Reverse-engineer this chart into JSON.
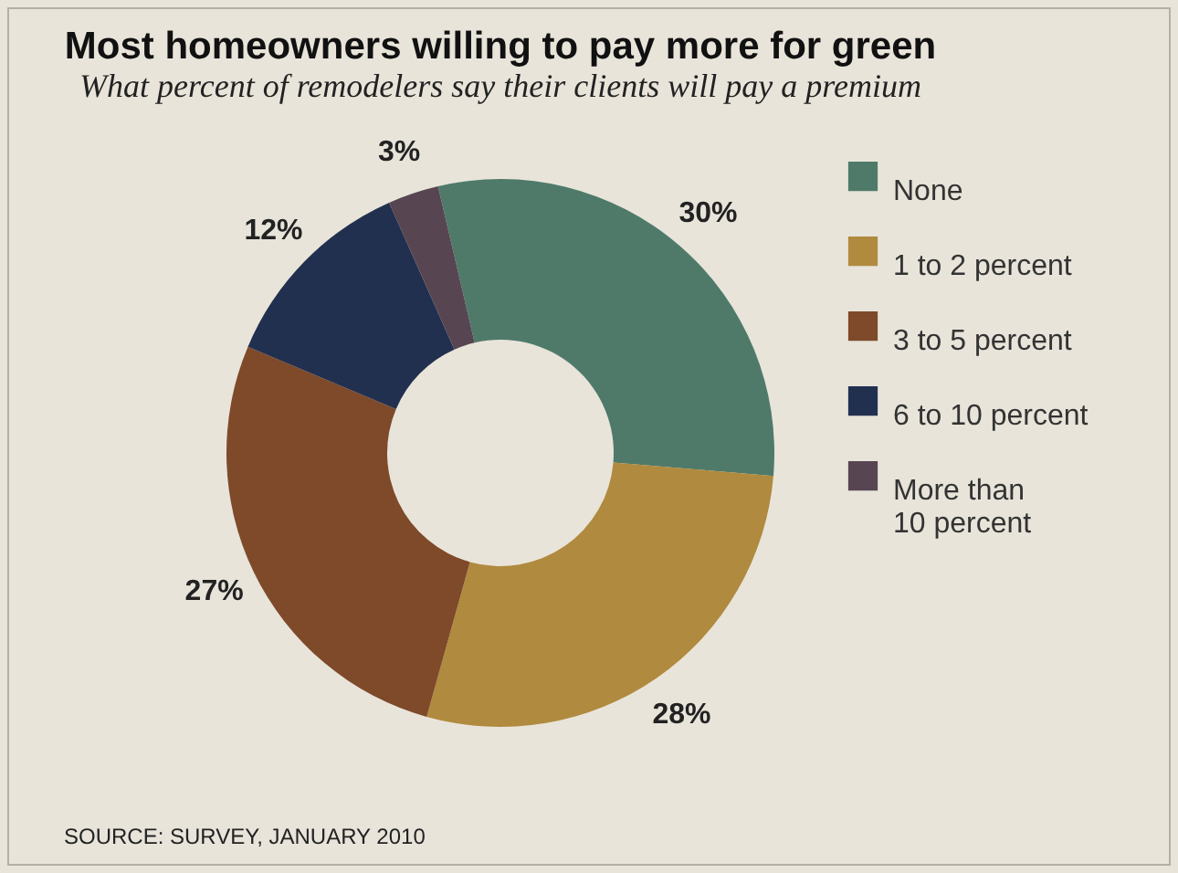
{
  "chart_data": {
    "type": "donut",
    "title": "Most homeowners willing to pay more for green",
    "subtitle": "What percent of remodelers say their clients will pay a premium",
    "categories": [
      "None",
      "1 to 2 percent",
      "3 to 5 percent",
      "6 to 10 percent",
      "More than 10 percent"
    ],
    "values": [
      30,
      28,
      27,
      12,
      3
    ],
    "colors": [
      "#4f7a6a",
      "#b08a3e",
      "#7e4a2a",
      "#22304f",
      "#574552"
    ],
    "value_labels": [
      "30%",
      "28%",
      "27%",
      "12%",
      "3%"
    ],
    "legend": "right",
    "annotations": [
      "SOURCE: SURVEY, JANUARY 2010"
    ]
  }
}
